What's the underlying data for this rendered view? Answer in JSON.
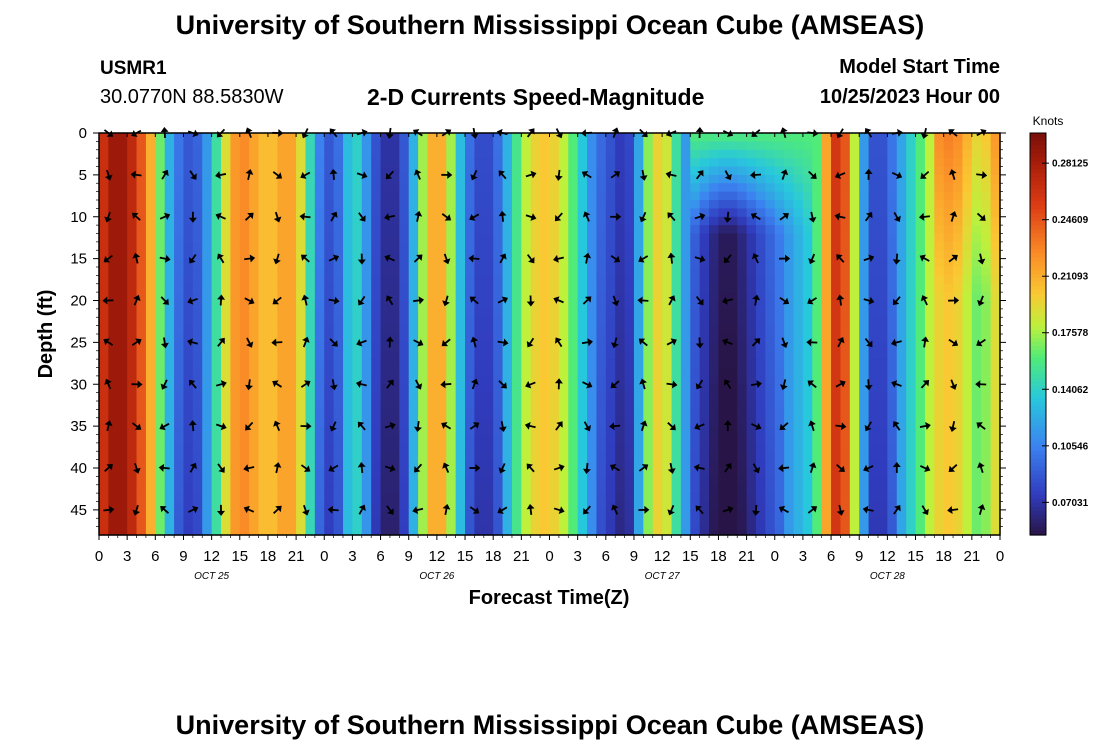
{
  "header": {
    "title": "University of Southern Mississippi Ocean Cube (AMSEAS)",
    "station": "USMR1",
    "coords": "30.0770N  88.5830W",
    "plot_title": "2-D Currents Speed-Magnitude",
    "model_label": "Model Start Time",
    "model_date": "10/25/2023 Hour 00"
  },
  "footer": {
    "title": "University of Southern Mississippi Ocean Cube (AMSEAS)"
  },
  "chart_data": {
    "type": "heatmap",
    "title": "2-D Currents Speed-Magnitude",
    "xlabel": "Forecast Time(Z)",
    "ylabel": "Depth (ft)",
    "x_tick_labels": [
      "0",
      "3",
      "6",
      "9",
      "12",
      "15",
      "18",
      "21",
      "0",
      "3",
      "6",
      "9",
      "12",
      "15",
      "18",
      "21",
      "0",
      "3",
      "6",
      "9",
      "12",
      "15",
      "18",
      "21",
      "0",
      "3",
      "6",
      "9",
      "12",
      "15",
      "18",
      "21",
      "0"
    ],
    "x_range_hours": [
      0,
      96
    ],
    "day_labels": [
      {
        "text": "OCT 25",
        "hour": 12
      },
      {
        "text": "OCT 26",
        "hour": 36
      },
      {
        "text": "OCT 27",
        "hour": 60
      },
      {
        "text": "OCT 28",
        "hour": 84
      }
    ],
    "y_ticks": [
      0,
      5,
      10,
      15,
      20,
      25,
      30,
      35,
      40,
      45
    ],
    "ylim": [
      0,
      48
    ],
    "y_inverted": true,
    "colorbar": {
      "label": "Knots",
      "tick_values": [
        "0.28125",
        "0.24609",
        "0.21093",
        "0.17578",
        "0.14062",
        "0.10546",
        "0.07031"
      ],
      "range": [
        0.05,
        0.3
      ]
    },
    "speed_profile_by_hour": [
      [
        0,
        0.25
      ],
      [
        1,
        0.28
      ],
      [
        2,
        0.29
      ],
      [
        3,
        0.28
      ],
      [
        4,
        0.26
      ],
      [
        5,
        0.23
      ],
      [
        6,
        0.19
      ],
      [
        7,
        0.14
      ],
      [
        8,
        0.11
      ],
      [
        9,
        0.09
      ],
      [
        10,
        0.085
      ],
      [
        11,
        0.1
      ],
      [
        12,
        0.13
      ],
      [
        13,
        0.17
      ],
      [
        14,
        0.21
      ],
      [
        15,
        0.23
      ],
      [
        16,
        0.22
      ],
      [
        17,
        0.21
      ],
      [
        18,
        0.2
      ],
      [
        19,
        0.21
      ],
      [
        20,
        0.22
      ],
      [
        21,
        0.21
      ],
      [
        22,
        0.17
      ],
      [
        23,
        0.12
      ],
      [
        24,
        0.09
      ],
      [
        25,
        0.085
      ],
      [
        26,
        0.11
      ],
      [
        27,
        0.15
      ],
      [
        28,
        0.13
      ],
      [
        29,
        0.095
      ],
      [
        30,
        0.075
      ],
      [
        31,
        0.065
      ],
      [
        32,
        0.075
      ],
      [
        33,
        0.1
      ],
      [
        34,
        0.15
      ],
      [
        35,
        0.2
      ],
      [
        36,
        0.22
      ],
      [
        37,
        0.2
      ],
      [
        38,
        0.15
      ],
      [
        39,
        0.11
      ],
      [
        40,
        0.085
      ],
      [
        41,
        0.08
      ],
      [
        42,
        0.085
      ],
      [
        43,
        0.11
      ],
      [
        44,
        0.14
      ],
      [
        45,
        0.17
      ],
      [
        46,
        0.19
      ],
      [
        47,
        0.2
      ],
      [
        48,
        0.2
      ],
      [
        49,
        0.19
      ],
      [
        50,
        0.17
      ],
      [
        51,
        0.15
      ],
      [
        52,
        0.12
      ],
      [
        53,
        0.1
      ],
      [
        54,
        0.09
      ],
      [
        55,
        0.08
      ],
      [
        56,
        0.07
      ],
      [
        57,
        0.09
      ],
      [
        58,
        0.15
      ],
      [
        59,
        0.19
      ],
      [
        60,
        0.2
      ],
      [
        61,
        0.17
      ],
      [
        62,
        0.13
      ],
      [
        63,
        0.1
      ],
      [
        64,
        0.085
      ],
      [
        65,
        0.07
      ],
      [
        66,
        0.06
      ],
      [
        67,
        0.055
      ],
      [
        68,
        0.06
      ],
      [
        69,
        0.07
      ],
      [
        70,
        0.08
      ],
      [
        71,
        0.09
      ],
      [
        72,
        0.1
      ],
      [
        73,
        0.11
      ],
      [
        74,
        0.12
      ],
      [
        75,
        0.13
      ],
      [
        76,
        0.14
      ],
      [
        77,
        0.18
      ],
      [
        78,
        0.25
      ],
      [
        79,
        0.27
      ],
      [
        80,
        0.22
      ],
      [
        81,
        0.14
      ],
      [
        82,
        0.09
      ],
      [
        83,
        0.08
      ],
      [
        84,
        0.09
      ],
      [
        85,
        0.11
      ],
      [
        86,
        0.13
      ],
      [
        87,
        0.15
      ],
      [
        88,
        0.17
      ],
      [
        89,
        0.19
      ],
      [
        90,
        0.2
      ],
      [
        91,
        0.2
      ],
      [
        92,
        0.19
      ],
      [
        93,
        0.17
      ],
      [
        94,
        0.16
      ],
      [
        95,
        0.18
      ],
      [
        96,
        0.2
      ]
    ]
  }
}
